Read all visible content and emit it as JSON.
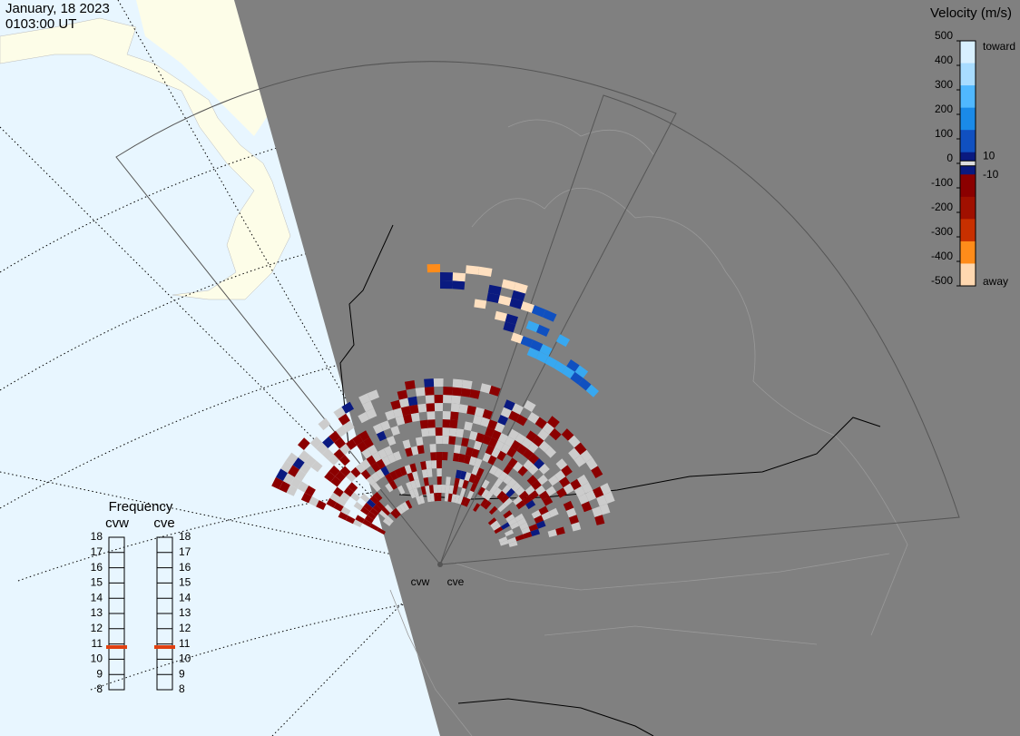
{
  "header": {
    "date": "January, 18 2023",
    "time": "0103:00 UT"
  },
  "colorbar": {
    "title": "Velocity (m/s)",
    "ticks": [
      500,
      400,
      300,
      200,
      100,
      0,
      -100,
      -200,
      -300,
      -400,
      -500
    ],
    "inner_ticks": [
      10,
      -10
    ],
    "toward": "toward",
    "away": "away",
    "limits": [
      500,
      -500
    ]
  },
  "frequency": {
    "title": "Frequency",
    "ticks": [
      18,
      17,
      16,
      15,
      14,
      13,
      12,
      11,
      10,
      9,
      8
    ],
    "radars": [
      {
        "name": "cvw",
        "value": 10.8
      },
      {
        "name": "cve",
        "value": 10.8
      }
    ]
  }
}
